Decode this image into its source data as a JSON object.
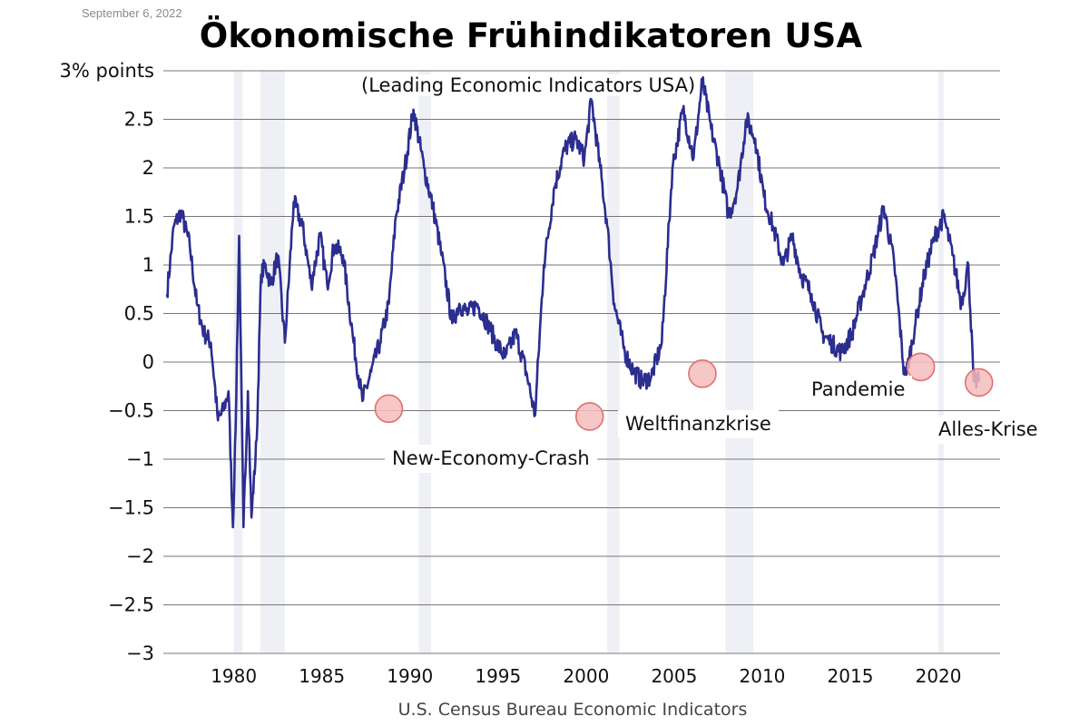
{
  "header": {
    "date": "September 6, 2022",
    "title": "Ökonomische Frühindikatoren USA",
    "subtitle": "(Leading Economic Indicators USA)"
  },
  "footer": {
    "source": "U.S. Census Bureau Economic Indicators"
  },
  "annotations": [
    {
      "label": "New-Economy-Crash",
      "x": 1988.8,
      "y": -0.48
    },
    {
      "label": "Weltfinanzkrise",
      "x": 2000.2,
      "y": -0.56
    },
    {
      "label": "",
      "x": 2006.6,
      "y": -0.12
    },
    {
      "label": "Pandemie",
      "x": 2019.0,
      "y": -0.05
    },
    {
      "label": "Alles-Krise",
      "x": 2022.3,
      "y": -0.21
    }
  ],
  "colors": {
    "line": "#2b2d8f",
    "marker_fill": "#f6bcbc",
    "marker_stroke": "#e07070",
    "recession_band": "#eef0f5",
    "gridline": "#777777"
  },
  "chart_data": {
    "type": "line",
    "title": "Ökonomische Frühindikatoren USA",
    "subtitle": "(Leading Economic Indicators USA)",
    "xlabel": "",
    "ylabel": "3% points",
    "xlim": [
      1976,
      2023.5
    ],
    "ylim": [
      -3,
      3
    ],
    "y_ticks": [
      3,
      2.5,
      2,
      1.5,
      1,
      0.5,
      0,
      -0.5,
      -1,
      -1.5,
      -2,
      -2.5,
      -3
    ],
    "y_tick_labels": [
      "3% points",
      "2.5",
      "2",
      "1.5",
      "1",
      "0.5",
      "0",
      "−0.5",
      "−1",
      "−1.5",
      "−2",
      "−2.5",
      "−3"
    ],
    "x_ticks": [
      1980,
      1985,
      1990,
      1995,
      2000,
      2005,
      2010,
      2015,
      2020
    ],
    "x_tick_labels": [
      "1980",
      "1985",
      "1990",
      "1995",
      "2000",
      "2005",
      "2010",
      "2015",
      "2020"
    ],
    "grid": true,
    "recession_bands": [
      [
        1980.0,
        1980.5
      ],
      [
        1981.5,
        1982.9
      ],
      [
        1990.5,
        1991.2
      ],
      [
        2001.2,
        2001.9
      ],
      [
        2007.9,
        2009.5
      ],
      [
        2020.0,
        2020.3
      ]
    ],
    "series": [
      {
        "name": "",
        "x": [
          1976.2,
          1976.6,
          1977.0,
          1977.5,
          1977.9,
          1978.3,
          1978.7,
          1979.1,
          1979.4,
          1979.7,
          1979.95,
          1980.1,
          1980.3,
          1980.55,
          1980.8,
          1981.0,
          1981.3,
          1981.55,
          1981.8,
          1982.1,
          1982.5,
          1982.9,
          1983.4,
          1983.9,
          1984.4,
          1984.9,
          1985.3,
          1985.7,
          1986.2,
          1986.8,
          1987.3,
          1987.8,
          1988.3,
          1988.8,
          1989.2,
          1989.7,
          1990.2,
          1990.8,
          1991.3,
          1991.8,
          1992.4,
          1992.8,
          1993.3,
          1993.8,
          1994.4,
          1994.9,
          1995.4,
          1996.0,
          1996.6,
          1997.1,
          1997.6,
          1998.2,
          1998.8,
          1999.4,
          1999.9,
          2000.3,
          2000.8,
          2001.2,
          2001.6,
          2002.2,
          2002.7,
          2003.2,
          2003.7,
          2004.3,
          2004.9,
          2005.5,
          2006.1,
          2006.6,
          2007.1,
          2007.6,
          2008.1,
          2008.6,
          2009.1,
          2009.6,
          2010.1,
          2010.6,
          2011.2,
          2011.7,
          2012.2,
          2012.8,
          2013.4,
          2013.9,
          2014.5,
          2015.1,
          2015.7,
          2016.3,
          2016.9,
          2017.5,
          2018.1,
          2018.7,
          2019.2,
          2019.8,
          2020.3,
          2020.8,
          2021.3,
          2021.7,
          2022.0,
          2022.3
        ],
        "values": [
          0.7,
          1.4,
          1.55,
          1.2,
          0.6,
          0.3,
          0.2,
          -0.6,
          -0.5,
          -0.3,
          -1.7,
          -0.7,
          1.3,
          -1.7,
          -0.3,
          -1.6,
          -0.8,
          0.9,
          1.0,
          0.8,
          1.1,
          0.2,
          1.65,
          1.4,
          0.8,
          1.3,
          0.8,
          1.2,
          1.1,
          0.2,
          -0.4,
          -0.1,
          0.2,
          0.6,
          1.5,
          2.0,
          2.6,
          2.0,
          1.6,
          1.1,
          0.4,
          0.6,
          0.5,
          0.6,
          0.4,
          0.2,
          0.05,
          0.3,
          -0.1,
          -0.55,
          1.0,
          1.8,
          2.2,
          2.3,
          2.1,
          2.7,
          2.0,
          1.4,
          0.6,
          0.1,
          -0.1,
          -0.2,
          -0.15,
          0.2,
          2.0,
          2.6,
          2.1,
          2.9,
          2.4,
          2.0,
          1.5,
          1.8,
          2.5,
          2.3,
          1.7,
          1.4,
          1.0,
          1.3,
          0.9,
          0.7,
          0.3,
          0.2,
          0.1,
          0.3,
          0.7,
          1.1,
          1.6,
          1.0,
          -0.2,
          0.4,
          0.9,
          1.3,
          1.5,
          1.1,
          0.6,
          1.0,
          -0.2,
          -0.2
        ]
      }
    ]
  }
}
